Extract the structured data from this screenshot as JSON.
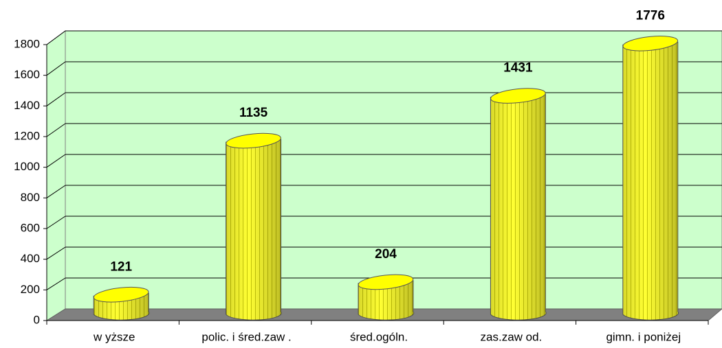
{
  "chart_data": {
    "type": "bar",
    "categories": [
      "w yższe",
      "polic. i śred.zaw .",
      "śred.ogóln.",
      "zas.zaw od.",
      "gimn. i poniżej"
    ],
    "values": [
      121,
      1135,
      204,
      1431,
      1776
    ],
    "color": "#ffff00",
    "ylim": [
      0,
      1800
    ],
    "yticks": [
      0,
      200,
      400,
      600,
      800,
      1000,
      1200,
      1400,
      1600,
      1800
    ],
    "grid": true
  }
}
